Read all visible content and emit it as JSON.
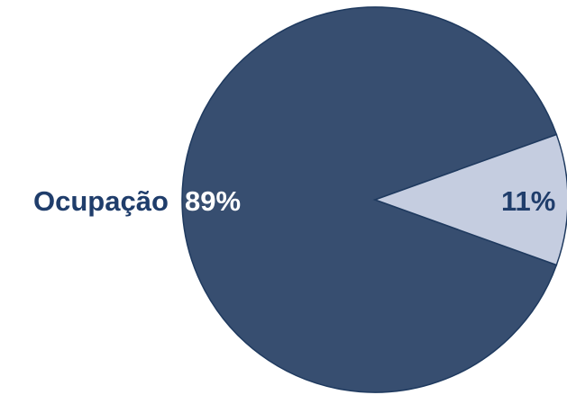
{
  "chart_data": {
    "type": "pie",
    "title": "",
    "label": "Ocupação",
    "slices": [
      {
        "label": "89%",
        "value": 89,
        "color": "#374e70"
      },
      {
        "label": "11%",
        "value": 11,
        "color": "#c5cde0"
      }
    ],
    "label_color": "#1f3d6b",
    "inner_label_color": "#ffffff",
    "edge_color": "#1f3a5f"
  }
}
